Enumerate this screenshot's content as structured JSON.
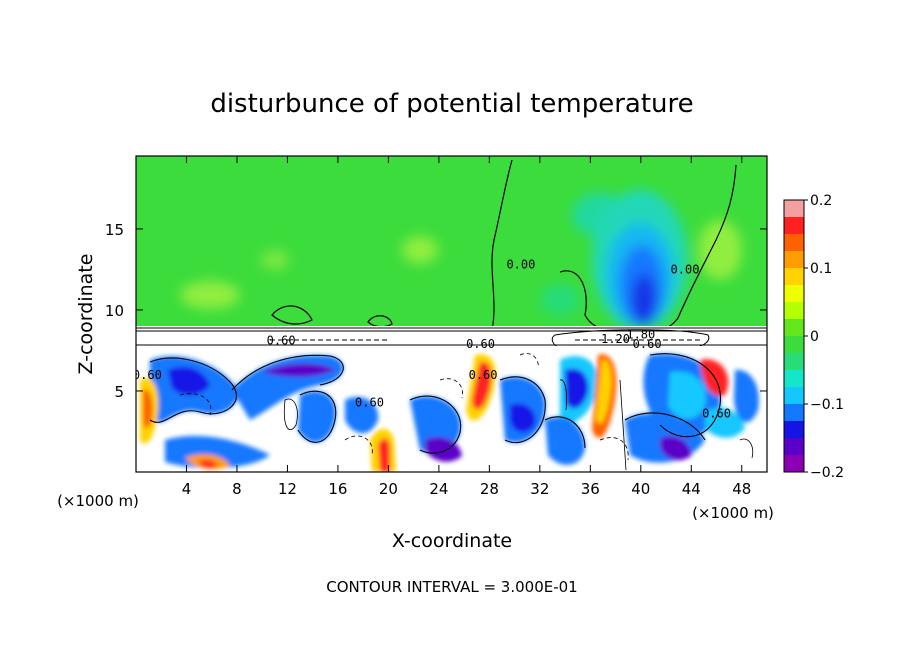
{
  "chart_data": {
    "type": "heatmap",
    "title": "disturbunce of potential temperature",
    "xlabel": "X-coordinate",
    "ylabel": "Z-coordinate",
    "x_unit": "(×1000 m)",
    "y_unit": "(×1000 m)",
    "x_ticks": [
      4,
      8,
      12,
      16,
      20,
      24,
      28,
      32,
      36,
      40,
      44,
      48
    ],
    "y_ticks": [
      5,
      10,
      15
    ],
    "xlim": [
      0,
      50
    ],
    "ylim": [
      0,
      19.5
    ],
    "footer": "CONTOUR INTERVAL = 3.000E-01",
    "colorbar": {
      "range": [
        -0.2,
        0.2
      ],
      "tick_labels": [
        "0.2",
        "0.1",
        "0",
        "−0.1",
        "−0.2"
      ],
      "tick_values": [
        0.2,
        0.1,
        0,
        -0.1,
        -0.2
      ],
      "colors": [
        "#f4a0a0",
        "#ff2020",
        "#ff6000",
        "#ff9c00",
        "#ffd200",
        "#f0ff00",
        "#b4ff00",
        "#64e61e",
        "#3cdc3c",
        "#28dc78",
        "#14e6c8",
        "#14c8ff",
        "#1478ff",
        "#1414e6",
        "#5a00c8",
        "#8c00b4"
      ]
    },
    "contour_labels": [
      {
        "text": "0.00",
        "x": 30.5,
        "z": 12.8
      },
      {
        "text": "0.00",
        "x": 43.5,
        "z": 12.5
      },
      {
        "text": "0.60",
        "x": 11.5,
        "z": 8.1
      },
      {
        "text": "0.60",
        "x": 27.3,
        "z": 7.9
      },
      {
        "text": "0.60",
        "x": 0.9,
        "z": 6.0
      },
      {
        "text": "0.60",
        "x": 27.5,
        "z": 6.0
      },
      {
        "text": "0.60",
        "x": 18.5,
        "z": 4.3
      },
      {
        "text": "0.60",
        "x": 46.0,
        "z": 3.6
      },
      {
        "text": "1.80",
        "x": 40.0,
        "z": 8.5
      },
      {
        "text": "1.20",
        "x": 38.0,
        "z": 8.2
      },
      {
        "text": "0.60",
        "x": 40.5,
        "z": 7.9
      }
    ]
  }
}
